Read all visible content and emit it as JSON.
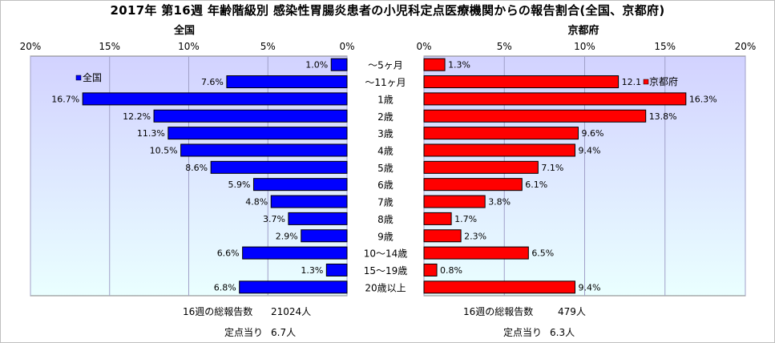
{
  "title": "2017年 第16週 年齢階級別 感染性胃腸炎患者の小児科定点医療機関からの報告割合(全国、京都府)",
  "chart_data": [
    {
      "type": "bar",
      "orientation": "horizontal",
      "panel_title": "全国",
      "direction": "reversed",
      "categories": [
        "～5ヶ月",
        "～11ヶ月",
        "1歳",
        "2歳",
        "3歳",
        "4歳",
        "5歳",
        "6歳",
        "7歳",
        "8歳",
        "9歳",
        "10～14歳",
        "15～19歳",
        "20歳以上"
      ],
      "series": [
        {
          "name": "全国",
          "values": [
            1.0,
            7.6,
            16.7,
            12.2,
            11.3,
            10.5,
            8.6,
            5.9,
            4.8,
            3.7,
            2.9,
            6.6,
            1.3,
            6.8
          ],
          "labels": [
            "1.0%",
            "7.6%",
            "16.7%",
            "12.2%",
            "11.3%",
            "10.5%",
            "8.6%",
            "5.9%",
            "4.8%",
            "3.7%",
            "2.9%",
            "6.6%",
            "1.3%",
            "6.8%"
          ],
          "color": "#0000ff"
        }
      ],
      "xlim": [
        0,
        20
      ],
      "xticks": [
        20,
        15,
        10,
        5,
        0
      ],
      "xtick_labels": [
        "20%",
        "15%",
        "10%",
        "5%",
        "0%"
      ],
      "legend": "top-left",
      "grid": true
    },
    {
      "type": "bar",
      "orientation": "horizontal",
      "panel_title": "京都府",
      "direction": "normal",
      "categories": [
        "～5ヶ月",
        "～11ヶ月",
        "1歳",
        "2歳",
        "3歳",
        "4歳",
        "5歳",
        "6歳",
        "7歳",
        "8歳",
        "9歳",
        "10～14歳",
        "15～19歳",
        "20歳以上"
      ],
      "series": [
        {
          "name": "京都府",
          "values": [
            1.3,
            12.1,
            16.3,
            13.8,
            9.6,
            9.4,
            7.1,
            6.1,
            3.8,
            1.7,
            2.3,
            6.5,
            0.8,
            9.4
          ],
          "labels": [
            "1.3%",
            "12.1",
            "16.3%",
            "13.8%",
            "9.6%",
            "9.4%",
            "7.1%",
            "6.1%",
            "3.8%",
            "1.7%",
            "2.3%",
            "6.5%",
            "0.8%",
            "9.4%"
          ],
          "color": "#ff0000"
        }
      ],
      "xlim": [
        0,
        20
      ],
      "xticks": [
        0,
        5,
        10,
        15,
        20
      ],
      "xtick_labels": [
        "0%",
        "5%",
        "10%",
        "15%",
        "20%"
      ],
      "legend": "top-right",
      "grid": true
    }
  ],
  "summary": {
    "national": {
      "total_label": "16週の総報告数",
      "total_value": "21024人",
      "per_label": "定点当り",
      "per_value": "6.7人"
    },
    "kyoto": {
      "total_label": "16週の総報告数",
      "total_value": "479人",
      "per_label": "定点当り",
      "per_value": "6.3人"
    }
  },
  "colors": {
    "plot_bg_top": "#d2d2ff",
    "plot_bg_bottom": "#eaffff",
    "grid": "#a0a0c8"
  }
}
